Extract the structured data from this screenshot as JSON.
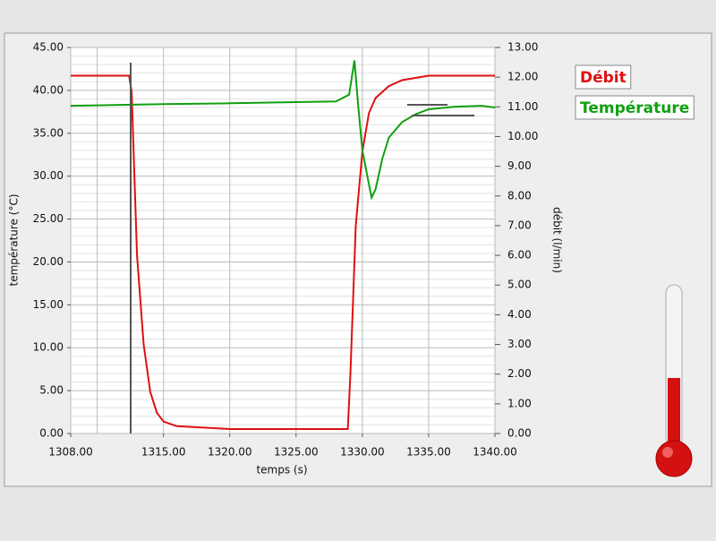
{
  "chart_data": {
    "type": "line",
    "xlabel": "temps (s)",
    "ylabel": "température (°C)",
    "y2label": "débit (l/min)",
    "xlim": [
      1308,
      1340
    ],
    "xticks": [
      {
        "value": 1308,
        "label": "1308.00"
      },
      {
        "value": 1315,
        "label": "1315.00"
      },
      {
        "value": 1320,
        "label": "1320.00"
      },
      {
        "value": 1325,
        "label": "1325.00"
      },
      {
        "value": 1330,
        "label": "1330.00"
      },
      {
        "value": 1335,
        "label": "1335.00"
      },
      {
        "value": 1340,
        "label": "1340.00"
      }
    ],
    "xminorticks": [
      1310
    ],
    "ylim": [
      0,
      45
    ],
    "yticks": [
      {
        "value": 0,
        "label": "0.00"
      },
      {
        "value": 5,
        "label": "5.00"
      },
      {
        "value": 10,
        "label": "10.00"
      },
      {
        "value": 15,
        "label": "15.00"
      },
      {
        "value": 20,
        "label": "20.00"
      },
      {
        "value": 25,
        "label": "25.00"
      },
      {
        "value": 30,
        "label": "30.00"
      },
      {
        "value": 35,
        "label": "35.00"
      },
      {
        "value": 40,
        "label": "40.00"
      },
      {
        "value": 45,
        "label": "45.00"
      }
    ],
    "yminorticks": [
      1,
      2,
      3,
      4,
      6,
      7,
      8,
      9,
      11,
      12,
      13,
      14,
      16,
      17,
      18,
      19,
      21,
      22,
      23,
      24,
      26,
      27,
      28,
      29,
      31,
      32,
      33,
      34,
      36,
      37,
      38,
      39,
      41,
      42,
      43,
      44
    ],
    "y2lim": [
      0,
      13
    ],
    "y2ticks": [
      {
        "value": 0,
        "label": "0.00"
      },
      {
        "value": 1,
        "label": "1.00"
      },
      {
        "value": 2,
        "label": "2.00"
      },
      {
        "value": 3,
        "label": "3.00"
      },
      {
        "value": 4,
        "label": "4.00"
      },
      {
        "value": 5,
        "label": "5.00"
      },
      {
        "value": 6,
        "label": "6.00"
      },
      {
        "value": 7,
        "label": "7.00"
      },
      {
        "value": 8,
        "label": "8.00"
      },
      {
        "value": 9,
        "label": "9.00"
      },
      {
        "value": 10,
        "label": "10.00"
      },
      {
        "value": 11,
        "label": "11.00"
      },
      {
        "value": 12,
        "label": "12.00"
      },
      {
        "value": 13,
        "label": "13.00"
      }
    ],
    "grid": true,
    "series": [
      {
        "name": "Débit",
        "color": "#e01010",
        "axis": "y2",
        "x": [
          1308,
          1312.4,
          1312.6,
          1313,
          1313.5,
          1314,
          1314.5,
          1315,
          1316,
          1318,
          1320,
          1325,
          1328.9,
          1329.1,
          1329.5,
          1330,
          1330.5,
          1331,
          1332,
          1333,
          1335,
          1340
        ],
        "values": [
          12.05,
          12.05,
          11.5,
          6,
          3,
          1.4,
          0.7,
          0.4,
          0.25,
          0.2,
          0.15,
          0.15,
          0.15,
          2,
          7,
          9.5,
          10.8,
          11.3,
          11.7,
          11.9,
          12.05,
          12.05
        ]
      },
      {
        "name": "Température",
        "color": "#10a010",
        "axis": "y",
        "x": [
          1308,
          1315,
          1320,
          1328,
          1329,
          1329.4,
          1329.7,
          1330,
          1330.5,
          1330.7,
          1331,
          1331.5,
          1332,
          1333,
          1334,
          1335,
          1337,
          1339,
          1340
        ],
        "values": [
          38.2,
          38.4,
          38.5,
          38.7,
          39.5,
          43.5,
          38,
          33,
          29,
          27.5,
          28.5,
          32,
          34.5,
          36.3,
          37.2,
          37.8,
          38.1,
          38.2,
          38
        ]
      }
    ]
  }
}
